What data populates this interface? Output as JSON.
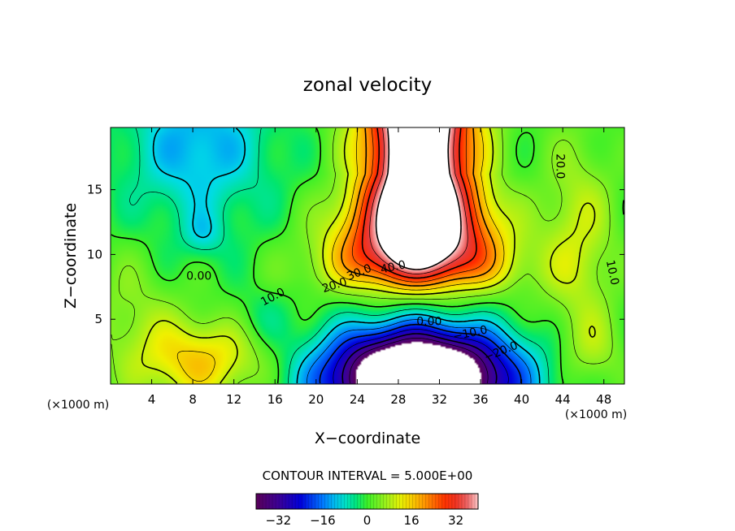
{
  "chart_data": {
    "type": "heatmap",
    "title": "zonal velocity",
    "xlabel": "X−coordinate",
    "ylabel": "Z−coordinate",
    "x_unit_left": "(×1000 m)",
    "x_unit_right": "(×1000 m)",
    "xlim": [
      0,
      50
    ],
    "ylim": [
      0,
      19.8
    ],
    "xticks": [
      4,
      8,
      12,
      16,
      20,
      24,
      28,
      32,
      36,
      40,
      44,
      48
    ],
    "yticks": [
      5,
      10,
      15
    ],
    "value_range": [
      -40,
      40
    ],
    "contour_interval_text": "CONTOUR INTERVAL = 5.000E+00",
    "colorbar_ticks": [
      "−32",
      "−16",
      "0",
      "16",
      "32"
    ],
    "colorbar_tick_values": [
      -32,
      -16,
      0,
      16,
      32
    ],
    "contour_labels": [
      {
        "text": "0.00",
        "x": 8.6,
        "y": 8.3,
        "angle": 0
      },
      {
        "text": "10.0",
        "x": 15.8,
        "y": 6.7,
        "angle": -28
      },
      {
        "text": "20.0",
        "x": 21.8,
        "y": 7.6,
        "angle": -18
      },
      {
        "text": "30.0",
        "x": 24.2,
        "y": 8.6,
        "angle": -22
      },
      {
        "text": "40.0",
        "x": 27.5,
        "y": 9.0,
        "angle": -12
      },
      {
        "text": "20.0",
        "x": 43.7,
        "y": 16.8,
        "angle": 90
      },
      {
        "text": "10.0",
        "x": 48.8,
        "y": 8.6,
        "angle": 78
      },
      {
        "text": "0.00",
        "x": 31.0,
        "y": 4.8,
        "angle": 0
      },
      {
        "text": "−10.0",
        "x": 35.0,
        "y": 3.9,
        "angle": -12
      },
      {
        "text": "−20.0",
        "x": 38.0,
        "y": 2.5,
        "angle": -22
      }
    ],
    "field_features": [
      {
        "kind": "jet",
        "amp": 58,
        "x0": 30,
        "zt": 8.2,
        "zs": 1.0,
        "w": 5.8,
        "wtop": 3.6
      },
      {
        "kind": "gauss",
        "amp": -70,
        "x0": 30,
        "z0": 0.4,
        "sx": 6.0,
        "sz": 2.6
      },
      {
        "kind": "gauss",
        "amp": 16,
        "x0": 8.5,
        "z0": 1.8,
        "sx": 4.6,
        "sz": 2.3
      },
      {
        "kind": "gauss",
        "amp": -13,
        "x0": 8.5,
        "z0": 18.5,
        "sx": 4.8,
        "sz": 4.2
      },
      {
        "kind": "gauss",
        "amp": -7,
        "x0": 9.0,
        "z0": 11.5,
        "sx": 1.4,
        "sz": 1.2
      },
      {
        "kind": "gauss",
        "amp": 5,
        "x0": 2.0,
        "z0": 6.0,
        "sx": 3.0,
        "sz": 3.0
      },
      {
        "kind": "gauss",
        "amp": 10,
        "x0": 45.5,
        "z0": 11,
        "sx": 2.5,
        "sz": 5.5
      },
      {
        "kind": "gauss",
        "amp": 6,
        "x0": 47,
        "z0": 2.5,
        "sx": 2.0,
        "sz": 2.0
      },
      {
        "kind": "gauss",
        "amp": -4,
        "x0": 14.5,
        "z0": 5.0,
        "sx": 2.0,
        "sz": 1.5
      }
    ]
  }
}
